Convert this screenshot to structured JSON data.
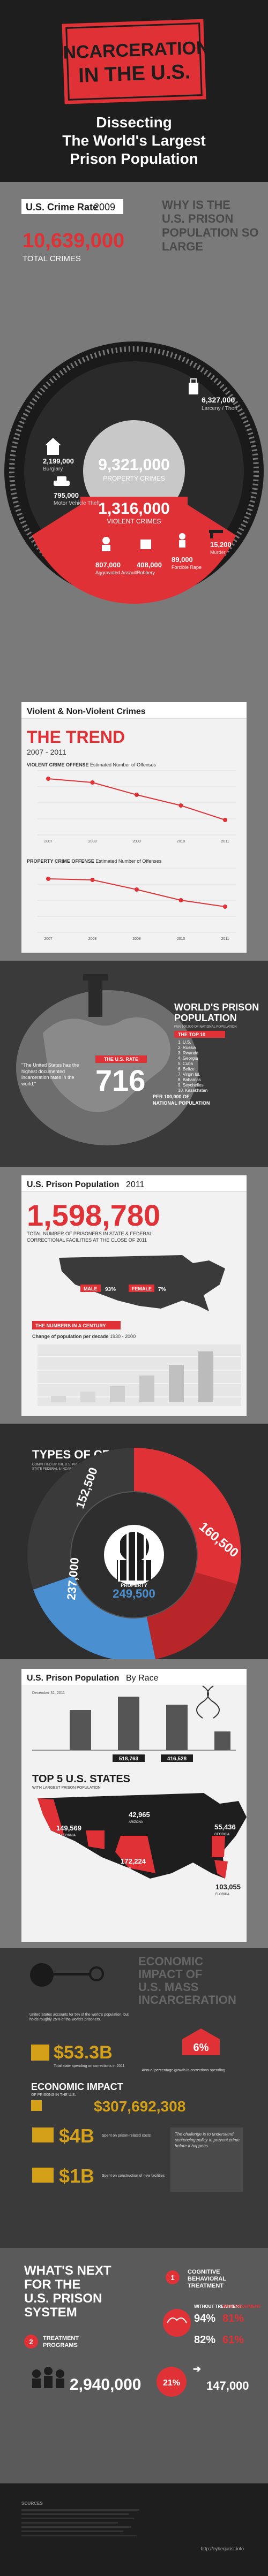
{
  "header": {
    "title_line1": "INCARCERATION",
    "title_line2": "IN THE U.S.",
    "subtitle_line1": "Dissecting",
    "subtitle_line2": "The World's Largest",
    "subtitle_line3": "Prison Population"
  },
  "crime_rate": {
    "heading": "U.S. Crime Rate",
    "year": "2009",
    "total_value": "10,639,000",
    "total_label": "TOTAL CRIMES",
    "question_line1": "WHY IS THE",
    "question_line2": "U.S. PRISON",
    "question_line3": "POPULATION SO",
    "question_line4": "LARGE",
    "property_value": "9,321,000",
    "property_label": "PROPERTY CRIMES",
    "violent_value": "1,316,000",
    "violent_label": "VIOLENT CRIMES",
    "larceny_value": "6,327,000",
    "larceny_label": "Larceny / Theft",
    "burglary_value": "2,199,000",
    "burglary_label": "Burglary",
    "vehicle_value": "795,000",
    "vehicle_label": "Motor Vehicle Theft",
    "assault_value": "807,000",
    "assault_label": "Aggravated Assault",
    "robbery_value": "408,000",
    "robbery_label": "Robbery",
    "rape_value": "89,000",
    "rape_label": "Forcible Rape",
    "murder_value": "15,200",
    "murder_label": "Murder"
  },
  "trend": {
    "heading": "Violent & Non-Violent Crimes",
    "title": "THE TREND",
    "years": "2007 - 2011",
    "violent_label": "VIOLENT CRIME OFFENSE",
    "violent_sublabel": "Estimated Number of Offenses",
    "property_label": "PROPERTY CRIME OFFENSE",
    "property_sublabel": "Estimated Number of Offenses",
    "x_labels": [
      "2007",
      "2008",
      "2009",
      "2010",
      "2011"
    ]
  },
  "world": {
    "title_line1": "WORLD'S PRISON",
    "title_line2": "POPULATION",
    "subtitle": "PER 100,000 OF NATIONAL POPULATION",
    "top10_label": "THE TOP 10",
    "countries": [
      "U.S.",
      "Russia",
      "Rwanda",
      "Georgia",
      "Cuba",
      "Belize",
      "Virgin Isl.",
      "Bahamas",
      "Seychelles",
      "Kazakhstan"
    ],
    "quote": "\"The United States has the highest documented incarceration rates in the world.\"",
    "us_rate_label": "THE U.S. RATE",
    "us_rate_value": "716",
    "us_rate_sub1": "PER 100,000 OF",
    "us_rate_sub2": "NATIONAL POPULATION"
  },
  "prison_pop": {
    "heading": "U.S. Prison Population",
    "year": "2011",
    "total_value": "1,598,780",
    "total_desc1": "TOTAL NUMBER OF PRISONERS IN STATE & FEDERAL",
    "total_desc2": "CORRECTIONAL FACILITIES AT THE CLOSE OF 2011",
    "male_label": "MALE",
    "male_pct": "93%",
    "female_label": "FEMALE",
    "female_pct": "7%",
    "century_label": "THE NUMBERS IN A CENTURY",
    "change_label": "Change of population per decade",
    "change_years": "1930 - 2000"
  },
  "types": {
    "title": "TYPES OF CRIMES",
    "subtitle1": "COMMITTED BY THE U.S. PRISON POPULATION",
    "subtitle2": "STATE FEDERAL & INCARCERATED",
    "red_value": "160,500",
    "violent_value": "152,500",
    "drug_value": "237,000",
    "property_value": "249,500",
    "property_label": "PROPERTY"
  },
  "race": {
    "heading": "U.S. Prison Population",
    "subheading": "By Race",
    "caption": "December 31, 2011",
    "bar_values": [
      "518,763",
      "416,528"
    ],
    "top5_title": "TOP 5 U.S. STATES",
    "top5_sub": "WITH LARGEST PRISON POPULATION",
    "state1_value": "149,569",
    "state1_label": "CALIFORNIA",
    "state2_value": "42,965",
    "state2_label": "ARIZONA",
    "state3_value": "55,436",
    "state3_label": "GEORGIA",
    "state4_value": "172,224",
    "state4_label": "TEXAS",
    "state5_value": "103,055",
    "state5_label": "FLORIDA"
  },
  "economic": {
    "title_line1": "ECONOMIC",
    "title_line2": "IMPACT OF",
    "title_line3": "U.S. MASS",
    "title_line4": "INCARCERATION",
    "intro": "United States accounts for 5% of the world's population, but holds roughly 25% of the world's prisoners.",
    "spend_value": "$53.3B",
    "spend_desc": "Total state spending on corrections in 2011",
    "pct_value": "6%",
    "pct_desc": "Annual percentage growth in corrections spending",
    "impact_label": "ECONOMIC IMPACT",
    "impact_sub": "OF PRISONS IN THE U.S.",
    "impact_value": "$307,692,308",
    "four_b_value": "$4B",
    "four_b_desc": "Spent on prison-related costs",
    "one_b_value": "$1B",
    "one_b_desc": "Spent on construction of new facilities",
    "side_quote": "The challenge is to understand sentencing policy to prevent crime before it happens."
  },
  "next": {
    "title_line1": "WHAT'S NEXT",
    "title_line2": "FOR THE",
    "title_line3": "U.S. PRISON",
    "title_line4": "SYSTEM",
    "item1_number": "1",
    "item1_title1": "COGNITIVE",
    "item1_title2": "BEHAVIORAL",
    "item1_title3": "TREATMENT",
    "item2_number": "2",
    "item2_title1": "TREATMENT",
    "item2_title2": "PROGRAMS",
    "without_label": "WITHOUT TREATMENT",
    "with_label": "WITH TREATMENT",
    "pct_94": "94%",
    "pct_81": "81%",
    "pct_82": "82%",
    "pct_61": "61%",
    "big_value": "2,940,000",
    "pct_21": "21%",
    "small_value": "147,000"
  },
  "footer": {
    "sources_label": "SOURCES",
    "credit": "http://cyberjurist.info"
  }
}
